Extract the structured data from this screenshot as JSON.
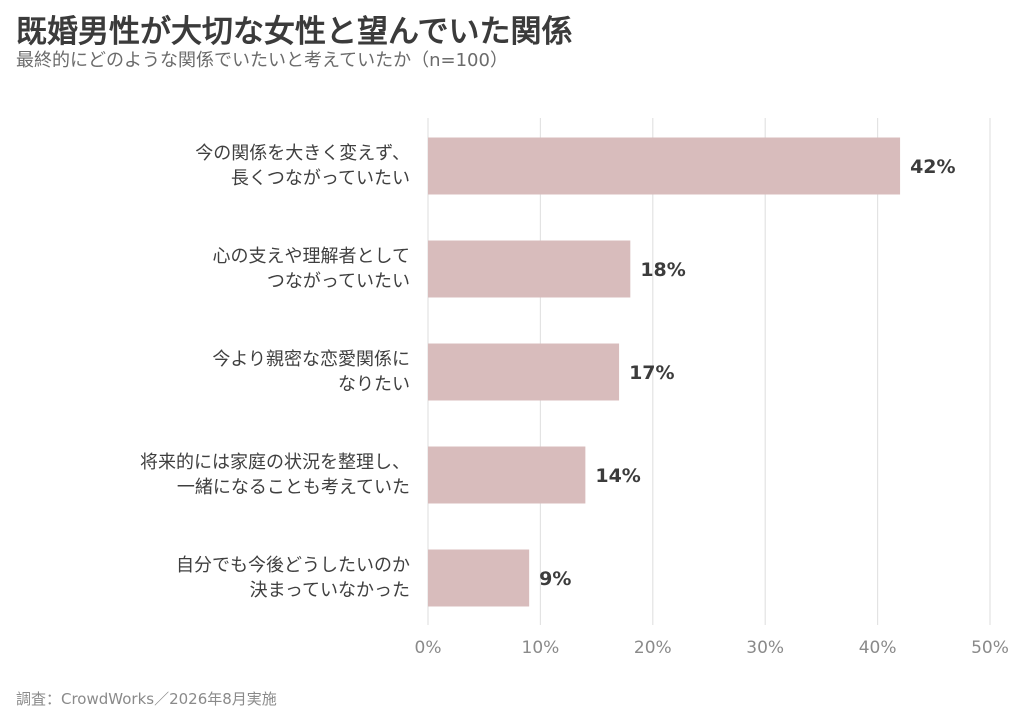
{
  "title": "既婚男性が大切な女性と望んでいた関係",
  "subtitle": "最終的にどのような関係でいたいと考えていたか（n=100）",
  "footer": "調査：CrowdWorks／2026年8月実施",
  "colors": {
    "bar": "#d8bcbc",
    "grid": "#e3e3e3",
    "value_label": "#3c3c3c",
    "tick_label": "#8a8a8a"
  },
  "chart_data": {
    "type": "bar",
    "orientation": "horizontal",
    "categories": [
      [
        "今の関係を大きく変えず、",
        "長くつながっていたい"
      ],
      [
        "心の支えや理解者として",
        "つながっていたい"
      ],
      [
        "今より親密な恋愛関係に",
        "なりたい"
      ],
      [
        "将来的には家庭の状況を整理し、",
        "一緒になることも考えていた"
      ],
      [
        "自分でも今後どうしたいのか",
        "決まっていなかった"
      ]
    ],
    "values": [
      42,
      18,
      17,
      14,
      9
    ],
    "value_labels": [
      "42%",
      "18%",
      "17%",
      "14%",
      "9%"
    ],
    "xlim": [
      0,
      50
    ],
    "x_ticks": [
      0,
      10,
      20,
      30,
      40,
      50
    ],
    "x_tick_labels": [
      "0%",
      "10%",
      "20%",
      "30%",
      "40%",
      "50%"
    ],
    "grid": true,
    "legend": "none"
  }
}
